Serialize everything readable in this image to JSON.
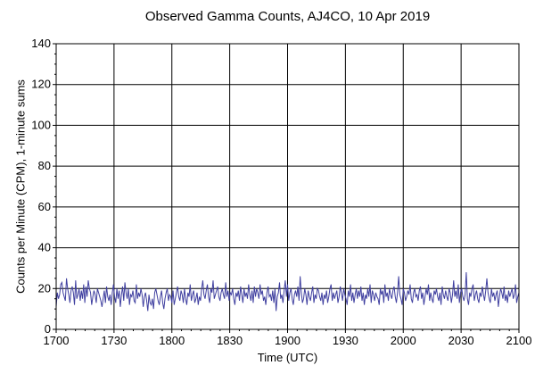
{
  "chart_data": {
    "type": "line",
    "title": "Observed Gamma Counts, AJ4CO, 10 Apr 2019",
    "xlabel": "Time (UTC)",
    "ylabel": "Counts per Minute (CPM), 1-minute sums",
    "x_tick_labels": [
      "1700",
      "1730",
      "1800",
      "1830",
      "1900",
      "1930",
      "2000",
      "2030",
      "2100"
    ],
    "y_ticks": [
      0,
      20,
      40,
      60,
      80,
      100,
      120,
      140
    ],
    "ylim": [
      0,
      140
    ],
    "grid": true,
    "series": [
      {
        "color": "#4040a0",
        "values": [
          11,
          18,
          15,
          17,
          22,
          23,
          18,
          16,
          14,
          25,
          20,
          17,
          13,
          19,
          21,
          18,
          12,
          24,
          15,
          17,
          20,
          14,
          19,
          15,
          22,
          13,
          21,
          16,
          24,
          20,
          18,
          12,
          16,
          19,
          17,
          13,
          20,
          18,
          16,
          14,
          11,
          15,
          19,
          13,
          21,
          16,
          14,
          17,
          12,
          18,
          22,
          16,
          13,
          20,
          15,
          19,
          11,
          17,
          21,
          14,
          23,
          18,
          15,
          20,
          12,
          17,
          16,
          19,
          14,
          13,
          22,
          15,
          18,
          16,
          20,
          17,
          11,
          16,
          18,
          14,
          9,
          17,
          13,
          12,
          15,
          10,
          18,
          20,
          17,
          14,
          12,
          16,
          19,
          13,
          10,
          15,
          18,
          20,
          14,
          17,
          16,
          13,
          19,
          12,
          15,
          18,
          21,
          16,
          14,
          19,
          17,
          13,
          20,
          15,
          12,
          18,
          16,
          22,
          14,
          17,
          19,
          13,
          15,
          18,
          12,
          16,
          14,
          20,
          24,
          17,
          15,
          19,
          22,
          16,
          13,
          20,
          18,
          24,
          15,
          17,
          19,
          21,
          16,
          14,
          18,
          20,
          17,
          15,
          23,
          16,
          19,
          14,
          18,
          17,
          20,
          15,
          12,
          18,
          16,
          19,
          14,
          21,
          17,
          13,
          20,
          16,
          18,
          15,
          22,
          17,
          14,
          19,
          13,
          21,
          16,
          20,
          18,
          15,
          22,
          17,
          19,
          14,
          16,
          12,
          18,
          21,
          16,
          17,
          14,
          19,
          13,
          20,
          9,
          16,
          18,
          23,
          15,
          17,
          13,
          19,
          24,
          16,
          22,
          14,
          18,
          20,
          15,
          12,
          17,
          19,
          16,
          21,
          14,
          26,
          18,
          13,
          15,
          20,
          17,
          12,
          19,
          16,
          14,
          18,
          21,
          13,
          17,
          15,
          20,
          19,
          16,
          14,
          18,
          12,
          17,
          15,
          19,
          13,
          16,
          20,
          22,
          14,
          18,
          15,
          17,
          19,
          13,
          16,
          21,
          18,
          14,
          20,
          17,
          15,
          12,
          19,
          16,
          22,
          14,
          18,
          13,
          17,
          20,
          15,
          19,
          16,
          21,
          14,
          18,
          12,
          17,
          15,
          20,
          16,
          22,
          13,
          19,
          17,
          14,
          18,
          16,
          15,
          12,
          20,
          17,
          19,
          13,
          22,
          16,
          18,
          14,
          20,
          17,
          15,
          19,
          21,
          16,
          13,
          18,
          26,
          17,
          15,
          12,
          20,
          18,
          14,
          16,
          19,
          17,
          22,
          15,
          13,
          18,
          20,
          16,
          17,
          14,
          19,
          21,
          15,
          18,
          12,
          16,
          20,
          17,
          22,
          14,
          18,
          15,
          13,
          19,
          17,
          20,
          16,
          14,
          18,
          12,
          21,
          17,
          15,
          19,
          16,
          14,
          20,
          18,
          13,
          17,
          24,
          16,
          19,
          15,
          22,
          13,
          18,
          20,
          16,
          14,
          17,
          28,
          15,
          12,
          18,
          16,
          20,
          22,
          14,
          17,
          19,
          15,
          13,
          18,
          16,
          21,
          17,
          14,
          19,
          25,
          18,
          15,
          13,
          20,
          16,
          18,
          14,
          17,
          19,
          11,
          16,
          20,
          18,
          15,
          21,
          14,
          17,
          13,
          19,
          16,
          18,
          20,
          15,
          17,
          22,
          13,
          16,
          18
        ]
      }
    ]
  }
}
